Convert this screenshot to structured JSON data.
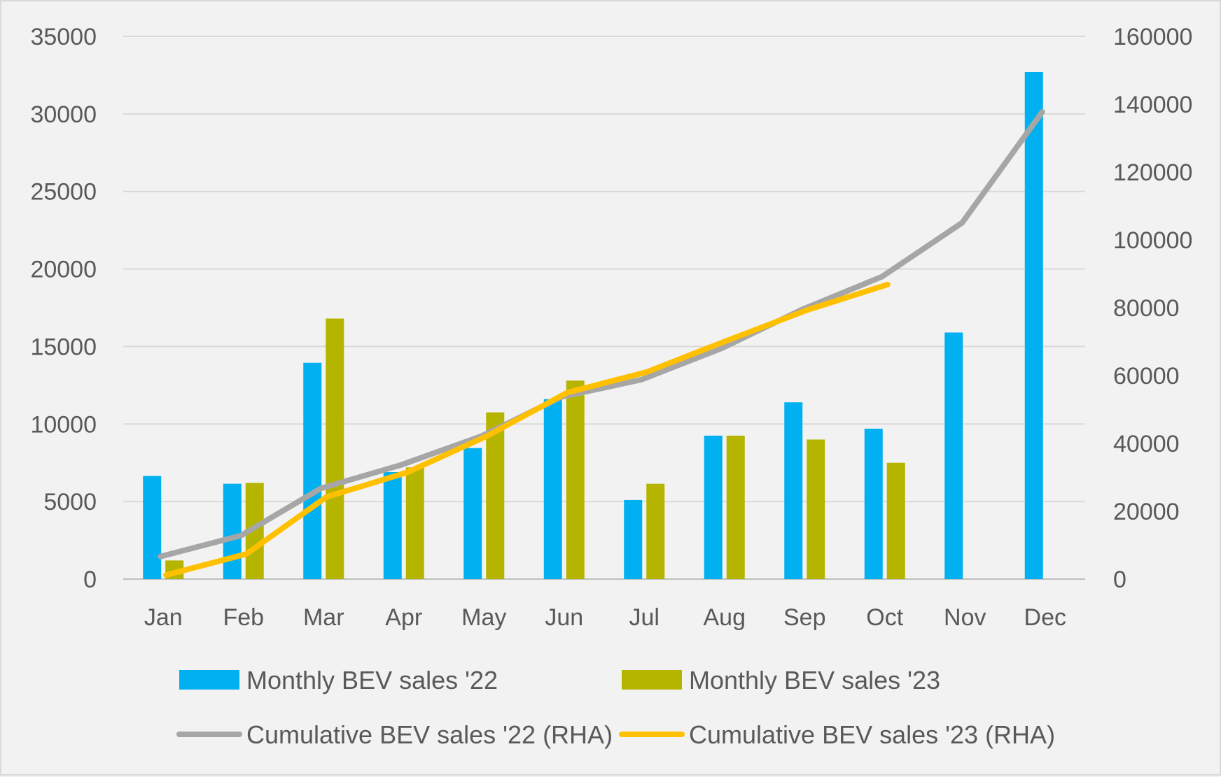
{
  "chart_data": {
    "type": "bar",
    "categories": [
      "Jan",
      "Feb",
      "Mar",
      "Apr",
      "May",
      "Jun",
      "Jul",
      "Aug",
      "Sep",
      "Oct",
      "Nov",
      "Dec"
    ],
    "bar_series": [
      {
        "name": "Monthly BEV sales '22",
        "color": "#00b0f0",
        "values": [
          6650,
          6150,
          13950,
          6900,
          8450,
          11600,
          5100,
          9250,
          11400,
          9700,
          15900,
          32700
        ]
      },
      {
        "name": "Monthly BEV sales '23",
        "color": "#b5b500",
        "values": [
          1200,
          6200,
          16800,
          7200,
          10750,
          12800,
          6150,
          9250,
          9000,
          7500,
          null,
          null
        ]
      }
    ],
    "line_series": [
      {
        "name": "Cumulative BEV sales '22 (RHA)",
        "color": "#a6a6a6",
        "axis": "right",
        "values": [
          6650,
          12800,
          26750,
          33650,
          42100,
          53700,
          58800,
          68050,
          79450,
          89150,
          105050,
          137750
        ]
      },
      {
        "name": "Cumulative BEV sales '23 (RHA)",
        "color": "#ffc000",
        "axis": "right",
        "values": [
          1200,
          7400,
          24200,
          31400,
          42150,
          54950,
          61100,
          70350,
          79350,
          86850,
          null,
          null
        ]
      }
    ],
    "ylim_left": [
      0,
      35000
    ],
    "yticks_left": [
      "0",
      "5000",
      "10000",
      "15000",
      "20000",
      "25000",
      "30000",
      "35000"
    ],
    "ylim_right": [
      0,
      160000
    ],
    "yticks_right": [
      "0",
      "20000",
      "40000",
      "60000",
      "80000",
      "100000",
      "120000",
      "140000",
      "160000"
    ],
    "grid": true,
    "legend_position": "bottom"
  }
}
